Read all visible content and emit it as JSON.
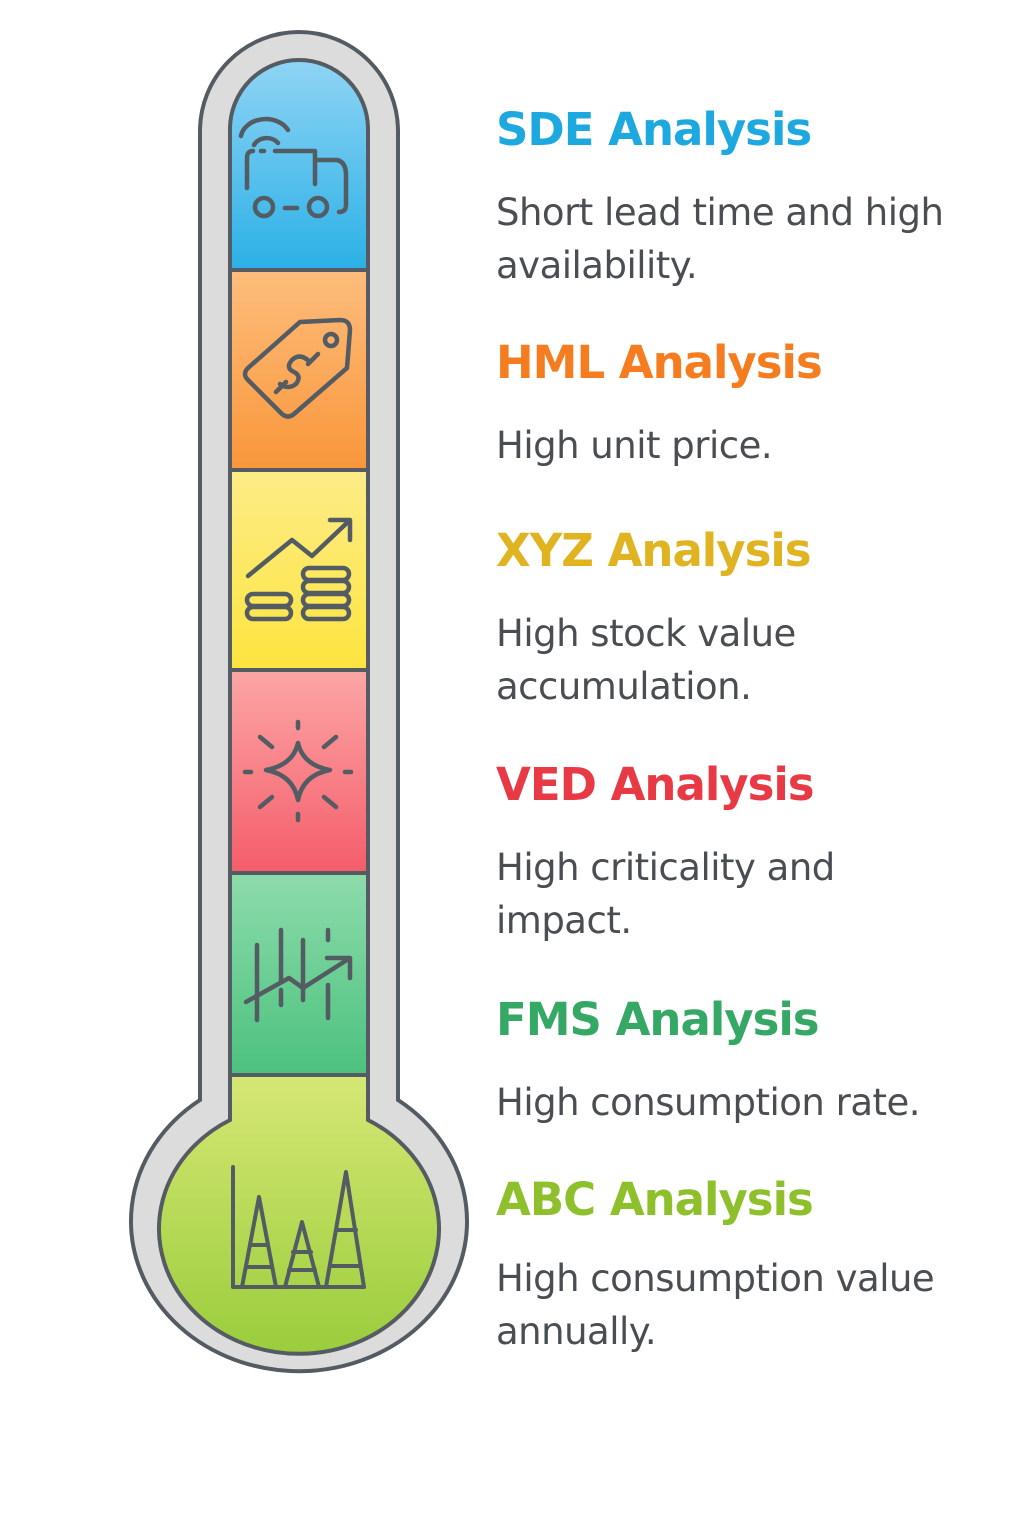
{
  "items": [
    {
      "title": "SDE Analysis",
      "desc": "Short lead time and high availability.",
      "color": "#1ea8e0",
      "icon": "delivery-truck-wifi-icon"
    },
    {
      "title": "HML Analysis",
      "desc": "High unit price.",
      "color": "#f57c1f",
      "icon": "price-tag-dollar-icon"
    },
    {
      "title": "XYZ Analysis",
      "desc": "High stock value accumulation.",
      "color": "#e0b320",
      "icon": "coins-growth-icon"
    },
    {
      "title": "VED Analysis",
      "desc": "High criticality and impact.",
      "color": "#e83a45",
      "icon": "sparkle-icon"
    },
    {
      "title": "FMS Analysis",
      "desc": "High consumption rate.",
      "color": "#35a865",
      "icon": "trend-chart-icon"
    },
    {
      "title": "ABC Analysis",
      "desc": "High consumption value annually.",
      "color": "#8ec02c",
      "icon": "abc-ladder-icon"
    }
  ]
}
